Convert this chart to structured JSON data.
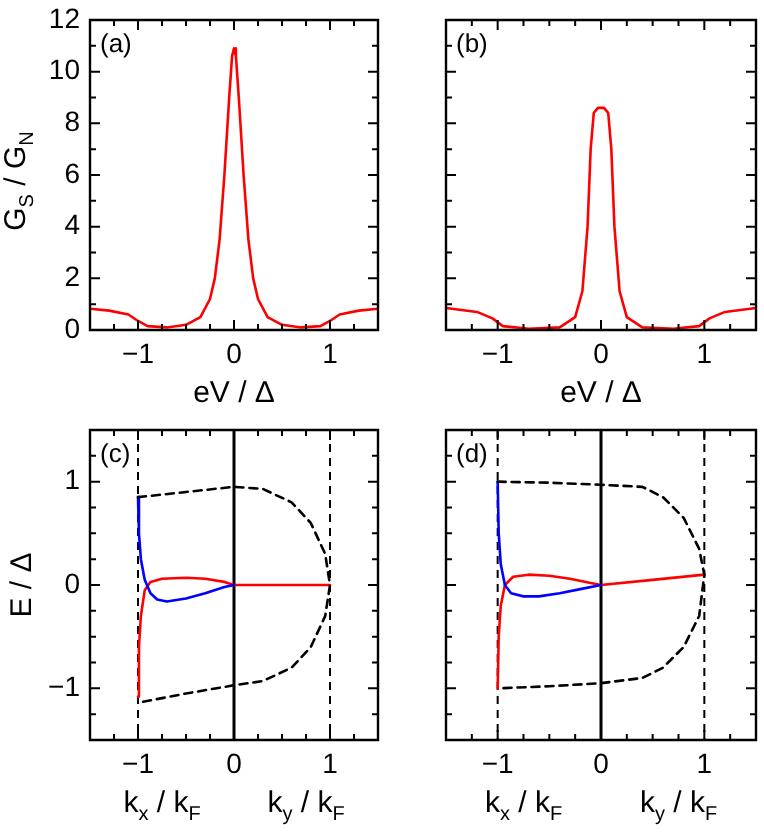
{
  "chart_data": [
    {
      "type": "line",
      "title": "(a)",
      "xlabel": "eV / Δ",
      "ylabel": "G$_{S}$ / G$_{N}$",
      "xlim": [
        -1.5,
        1.5
      ],
      "ylim": [
        0,
        12
      ],
      "xticks": [
        {
          "value": -1.25,
          "label": null
        },
        -1,
        {
          "value": -0.75,
          "label": null
        },
        {
          "value": -0.5,
          "label": null
        },
        {
          "value": -0.25,
          "label": null
        },
        0,
        {
          "value": 0.25,
          "label": null
        },
        {
          "value": 0.5,
          "label": null
        },
        {
          "value": 0.75,
          "label": null
        },
        1,
        {
          "value": 1.25,
          "label": null
        }
      ],
      "yticks": [
        0,
        {
          "value": 1,
          "label": null
        },
        2,
        {
          "value": 3,
          "label": null
        },
        4,
        {
          "value": 5,
          "label": null
        },
        6,
        {
          "value": 7,
          "label": null
        },
        8,
        {
          "value": 9,
          "label": null
        },
        10,
        {
          "value": 11,
          "label": null
        },
        12
      ],
      "series": [
        {
          "color": "#ff0000",
          "x": [
            -1.5,
            -1.3,
            -1.1,
            -1.0,
            -0.9,
            -0.7,
            -0.5,
            -0.35,
            -0.25,
            -0.2,
            -0.15,
            -0.1,
            -0.05,
            -0.02,
            0,
            0.02,
            0.05,
            0.1,
            0.15,
            0.2,
            0.25,
            0.35,
            0.5,
            0.7,
            0.9,
            1.0,
            1.1,
            1.3,
            1.5
          ],
          "values": [
            0.82,
            0.75,
            0.6,
            0.35,
            0.15,
            0.1,
            0.2,
            0.5,
            1.2,
            2,
            3.5,
            6,
            9,
            10.6,
            10.9,
            10.6,
            9,
            6,
            3.5,
            2,
            1.2,
            0.5,
            0.2,
            0.1,
            0.15,
            0.35,
            0.6,
            0.75,
            0.82
          ]
        }
      ]
    },
    {
      "type": "line",
      "title": "(b)",
      "xlabel": "eV / Δ",
      "xlim": [
        -1.5,
        1.5
      ],
      "ylim": [
        0,
        12
      ],
      "tick_labels": "x",
      "xticks": [
        {
          "value": -1.25,
          "label": null
        },
        -1,
        {
          "value": -0.75,
          "label": null
        },
        {
          "value": -0.5,
          "label": null
        },
        {
          "value": -0.25,
          "label": null
        },
        0,
        {
          "value": 0.25,
          "label": null
        },
        {
          "value": 0.5,
          "label": null
        },
        {
          "value": 0.75,
          "label": null
        },
        1,
        {
          "value": 1.25,
          "label": null
        }
      ],
      "yticks": [
        0,
        {
          "value": 1,
          "label": null
        },
        2,
        {
          "value": 3,
          "label": null
        },
        4,
        {
          "value": 5,
          "label": null
        },
        6,
        {
          "value": 7,
          "label": null
        },
        8,
        {
          "value": 9,
          "label": null
        },
        10,
        {
          "value": 11,
          "label": null
        },
        12
      ],
      "series": [
        {
          "color": "#ff0000",
          "x": [
            -1.5,
            -1.2,
            -1.05,
            -0.95,
            -0.7,
            -0.4,
            -0.25,
            -0.18,
            -0.13,
            -0.1,
            -0.07,
            -0.03,
            0,
            0.03,
            0.07,
            0.1,
            0.13,
            0.18,
            0.25,
            0.4,
            0.7,
            0.95,
            1.05,
            1.2,
            1.5
          ],
          "values": [
            0.85,
            0.7,
            0.45,
            0.15,
            0.05,
            0.1,
            0.5,
            1.5,
            4,
            7,
            8.4,
            8.6,
            8.6,
            8.6,
            8.4,
            7,
            4,
            1.5,
            0.5,
            0.1,
            0.05,
            0.15,
            0.45,
            0.7,
            0.85
          ]
        }
      ]
    },
    {
      "type": "line",
      "title": "(c)",
      "xlabel": "k$_{x}$ / k$_{F}$",
      "ylabel": "E / Δ",
      "annotations": [
        "k$_{y}$ / k$_{F}$"
      ],
      "xlim": [
        -1.5,
        1.5
      ],
      "ylim": [
        -1.5,
        1.5
      ],
      "xticks": [
        {
          "value": -1.25,
          "label": null
        },
        -1,
        {
          "value": -0.75,
          "label": null
        },
        {
          "value": -0.5,
          "label": null
        },
        {
          "value": -0.25,
          "label": null
        },
        0,
        {
          "value": 0.25,
          "label": null
        },
        {
          "value": 0.5,
          "label": null
        },
        {
          "value": 0.75,
          "label": null
        },
        1,
        {
          "value": 1.25,
          "label": null
        }
      ],
      "yticks": [
        {
          "value": -1.25,
          "label": null
        },
        -1,
        {
          "value": -0.75,
          "label": null
        },
        {
          "value": -0.5,
          "label": null
        },
        {
          "value": -0.25,
          "label": null
        },
        0,
        {
          "value": 0.25,
          "label": null
        },
        {
          "value": 0.5,
          "label": null
        },
        {
          "value": 0.75,
          "label": null
        },
        1,
        {
          "value": 1.25,
          "label": null
        }
      ],
      "ref_lines": [
        {
          "axis": "x",
          "value": -1,
          "color": "#000000",
          "line_style": "dashed"
        },
        {
          "axis": "x",
          "value": 0,
          "color": "#000000",
          "line_style": "solid"
        },
        {
          "axis": "x",
          "value": 1,
          "color": "#000000",
          "line_style": "dashed"
        }
      ],
      "series": [
        {
          "color": "#000000",
          "line_style": "dashed",
          "x": [
            -1,
            -0.5,
            0,
            0.3,
            0.6,
            0.8,
            0.95,
            1,
            0.95,
            0.8,
            0.6,
            0.3,
            0,
            -0.5,
            -1
          ],
          "values": [
            0.85,
            0.9,
            0.95,
            0.93,
            0.8,
            0.6,
            0.3,
            0,
            -0.3,
            -0.6,
            -0.8,
            -0.93,
            -0.97,
            -1.05,
            -1.14
          ]
        },
        {
          "color": "#0000ff",
          "x": [
            -1,
            -0.99,
            -0.97,
            -0.93,
            -0.87,
            -0.8,
            -0.7,
            -0.5,
            -0.3,
            -0.1,
            0
          ],
          "values": [
            0.85,
            0.5,
            0.25,
            0.05,
            -0.08,
            -0.14,
            -0.16,
            -0.13,
            -0.08,
            -0.02,
            0
          ]
        },
        {
          "color": "#ff0000",
          "x": [
            -1,
            -0.99,
            -0.97,
            -0.93,
            -0.87,
            -0.75,
            -0.5,
            -0.3,
            -0.1,
            0,
            1
          ],
          "values": [
            -1.08,
            -0.6,
            -0.3,
            -0.05,
            0.03,
            0.06,
            0.07,
            0.06,
            0.03,
            0,
            0
          ]
        }
      ]
    },
    {
      "type": "line",
      "title": "(d)",
      "xlabel": "k$_{x}$ / k$_{F}$",
      "annotations": [
        "k$_{y}$ / k$_{F}$"
      ],
      "xlim": [
        -1.5,
        1.5
      ],
      "ylim": [
        -1.5,
        1.5
      ],
      "tick_labels": "x",
      "xticks": [
        {
          "value": -1.25,
          "label": null
        },
        -1,
        {
          "value": -0.75,
          "label": null
        },
        {
          "value": -0.5,
          "label": null
        },
        {
          "value": -0.25,
          "label": null
        },
        0,
        {
          "value": 0.25,
          "label": null
        },
        {
          "value": 0.5,
          "label": null
        },
        {
          "value": 0.75,
          "label": null
        },
        1,
        {
          "value": 1.25,
          "label": null
        }
      ],
      "yticks": [
        {
          "value": -1.25,
          "label": null
        },
        -1,
        {
          "value": -0.75,
          "label": null
        },
        {
          "value": -0.5,
          "label": null
        },
        {
          "value": -0.25,
          "label": null
        },
        0,
        {
          "value": 0.25,
          "label": null
        },
        {
          "value": 0.5,
          "label": null
        },
        {
          "value": 0.75,
          "label": null
        },
        1,
        {
          "value": 1.25,
          "label": null
        }
      ],
      "ref_lines": [
        {
          "axis": "x",
          "value": -1,
          "color": "#000000",
          "line_style": "dashed"
        },
        {
          "axis": "x",
          "value": 0,
          "color": "#000000",
          "line_style": "solid"
        },
        {
          "axis": "x",
          "value": 1,
          "color": "#000000",
          "line_style": "dashed"
        }
      ],
      "series": [
        {
          "color": "#000000",
          "line_style": "dashed",
          "x": [
            -1,
            -0.5,
            0,
            0.4,
            0.6,
            0.8,
            0.95,
            1,
            0.95,
            0.8,
            0.6,
            0.4,
            0,
            -0.5,
            -1
          ],
          "values": [
            1.0,
            0.99,
            0.97,
            0.95,
            0.85,
            0.65,
            0.35,
            0.1,
            -0.3,
            -0.6,
            -0.8,
            -0.9,
            -0.95,
            -0.98,
            -1.0
          ]
        },
        {
          "color": "#0000ff",
          "x": [
            -1,
            -0.99,
            -0.97,
            -0.93,
            -0.87,
            -0.75,
            -0.6,
            -0.4,
            -0.2,
            0
          ],
          "values": [
            1.0,
            0.5,
            0.2,
            0,
            -0.08,
            -0.11,
            -0.11,
            -0.08,
            -0.04,
            0
          ]
        },
        {
          "color": "#ff0000",
          "x": [
            -1,
            -0.99,
            -0.97,
            -0.93,
            -0.85,
            -0.7,
            -0.5,
            -0.3,
            -0.1,
            0,
            0.5,
            1
          ],
          "values": [
            -1.0,
            -0.5,
            -0.2,
            0,
            0.08,
            0.1,
            0.09,
            0.06,
            0.02,
            0,
            0.05,
            0.1
          ]
        }
      ]
    }
  ]
}
